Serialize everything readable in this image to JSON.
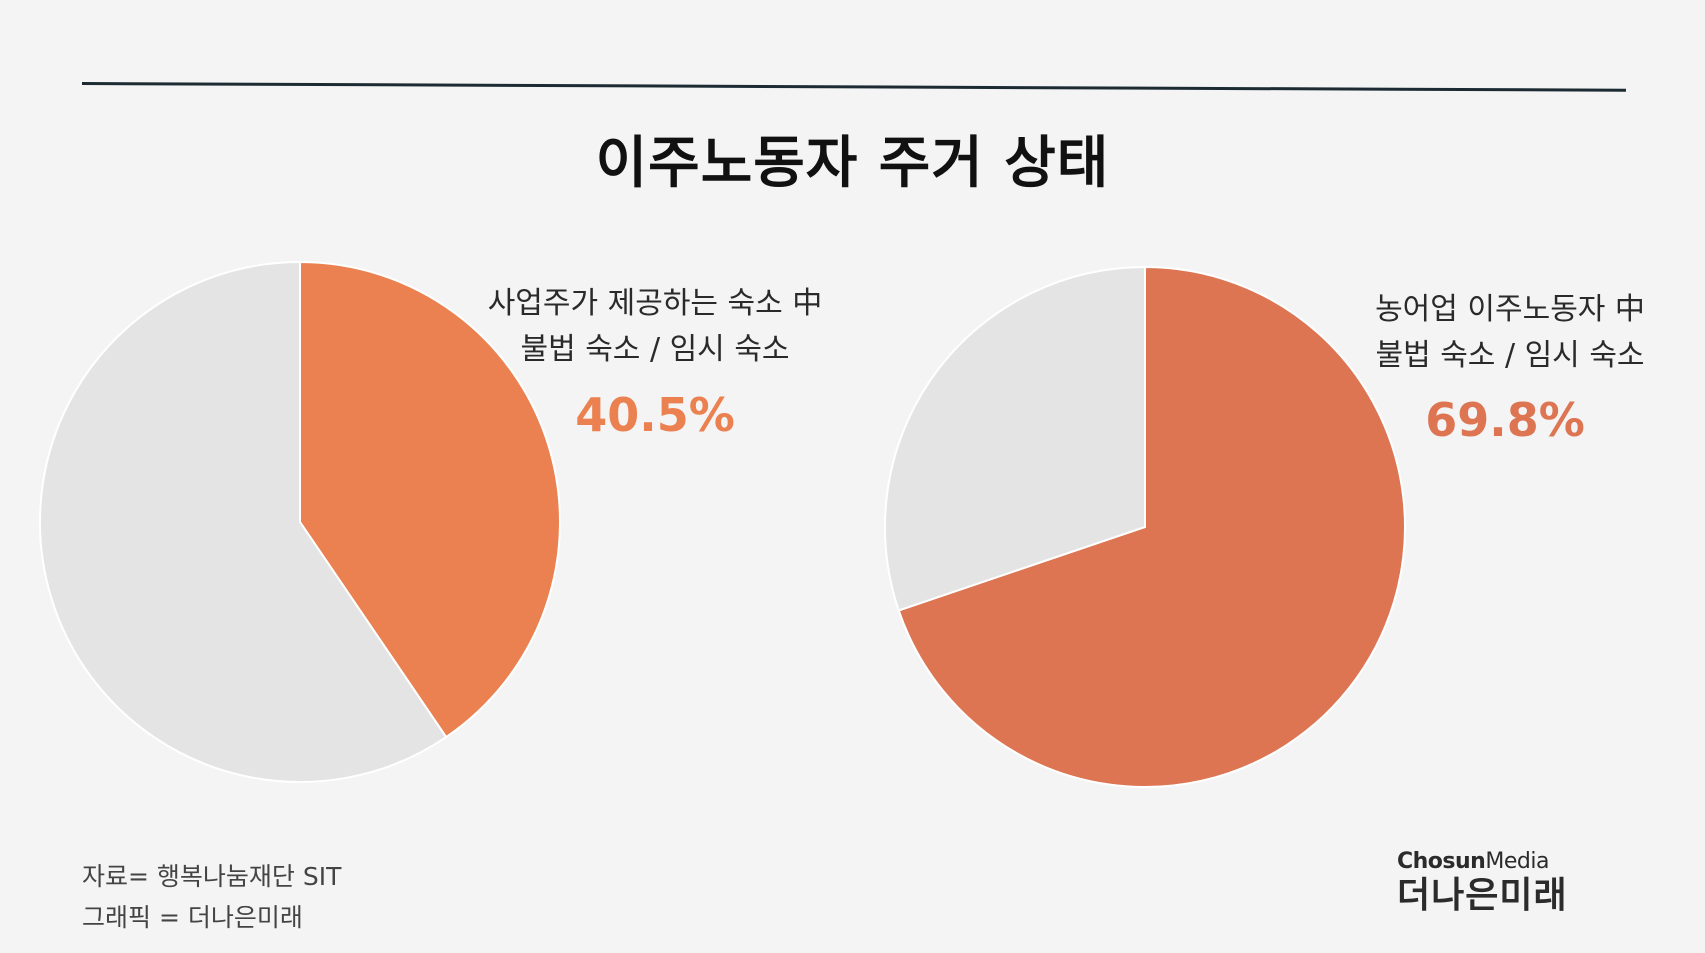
{
  "title": "이주노동자 주거 상태",
  "colors": {
    "background": "#f4f4f4",
    "slice_left": "#eb8150",
    "slice_right": "#dd7552",
    "rest": "#e4e4e4"
  },
  "chart_data": [
    {
      "type": "pie",
      "title": "",
      "label_lines": [
        "사업주가 제공하는 숙소 中",
        "불법 숙소 / 임시 숙소"
      ],
      "percent_label": "40.5%",
      "slices": [
        {
          "value": 40.5,
          "highlight": true
        },
        {
          "value": 59.5,
          "highlight": false
        }
      ]
    },
    {
      "type": "pie",
      "title": "",
      "label_lines": [
        "농어업 이주노동자 中",
        "불법 숙소 / 임시 숙소"
      ],
      "percent_label": "69.8%",
      "slices": [
        {
          "value": 69.8,
          "highlight": true
        },
        {
          "value": 30.2,
          "highlight": false
        }
      ]
    }
  ],
  "source": {
    "line1": "자료= 행복나눔재단 SIT",
    "line2": "그래픽 = 더나은미래"
  },
  "logo": {
    "brand_bold": "Chosun",
    "brand_light": "Media",
    "name": "더나은미래"
  }
}
